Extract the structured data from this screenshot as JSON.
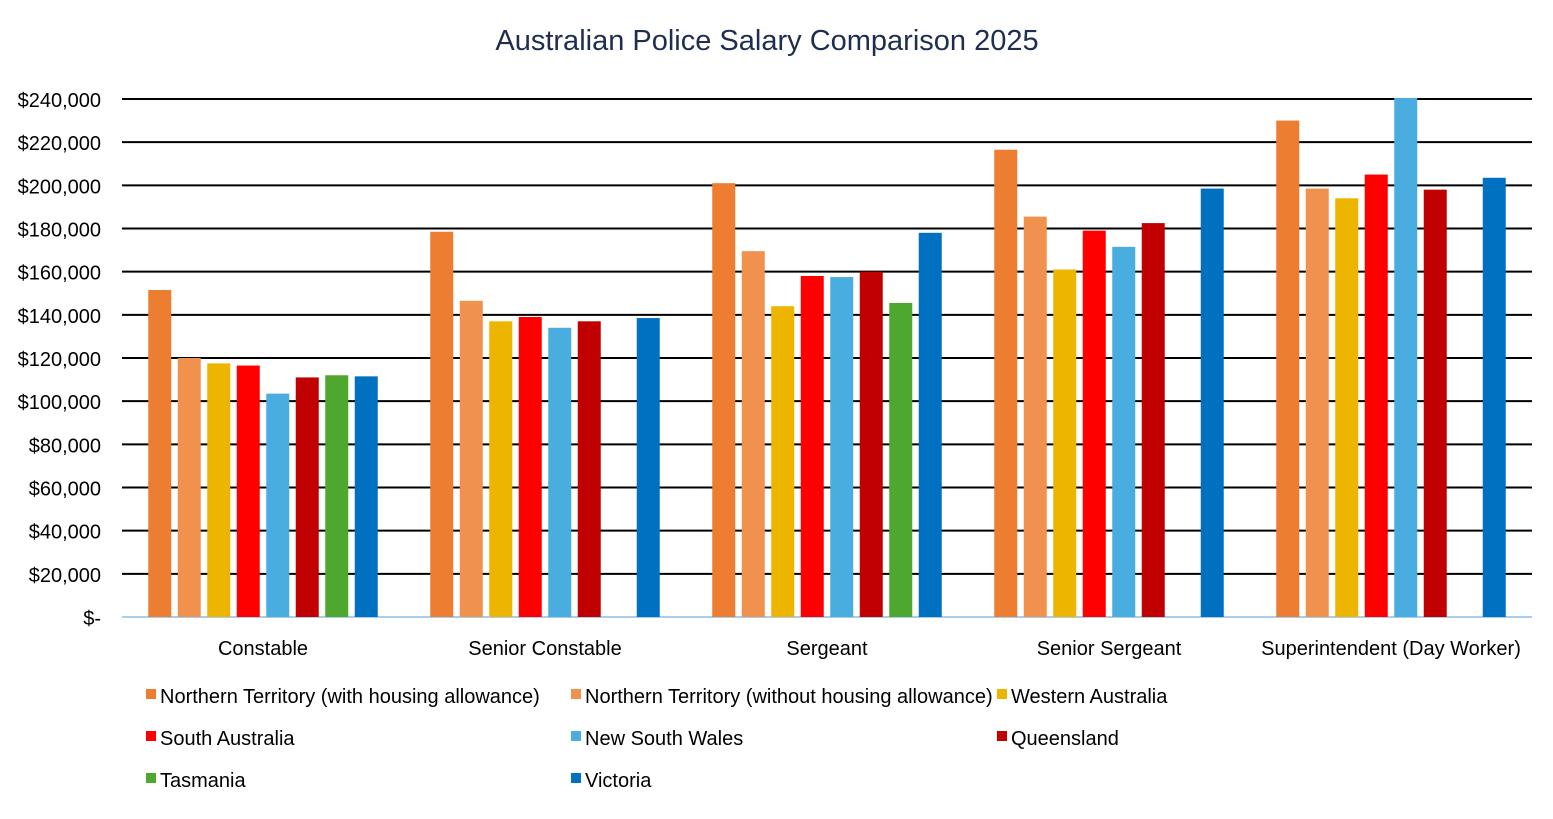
{
  "chart_data": {
    "type": "bar",
    "title": "Australian Police Salary Comparison 2025",
    "xlabel": "",
    "ylabel": "",
    "ylim": [
      0,
      240000
    ],
    "y_ticks": [
      0,
      20000,
      40000,
      60000,
      80000,
      100000,
      120000,
      140000,
      160000,
      180000,
      200000,
      220000,
      240000
    ],
    "y_tick_labels": [
      "$-",
      "$20,000",
      "$40,000",
      "$60,000",
      "$80,000",
      "$100,000",
      "$120,000",
      "$140,000",
      "$160,000",
      "$180,000",
      "$200,000",
      "$220,000",
      "$240,000"
    ],
    "grid": true,
    "legend_position": "bottom",
    "categories": [
      "Constable",
      "Senior Constable",
      "Sergeant",
      "Senior Sergeant",
      "Superintendent (Day Worker)"
    ],
    "series": [
      {
        "name": "Northern Territory (with housing allowance)",
        "color": "#ED7D31",
        "values": [
          151500,
          178500,
          201000,
          216500,
          230000
        ]
      },
      {
        "name": "Northern Territory (without housing allowance)",
        "color": "#F0914E",
        "values": [
          120000,
          146500,
          169500,
          185500,
          198500
        ]
      },
      {
        "name": "Western Australia",
        "color": "#EEB500",
        "values": [
          117500,
          137000,
          144000,
          161000,
          194000
        ]
      },
      {
        "name": "South Australia",
        "color": "#FF0000",
        "values": [
          116500,
          139000,
          158000,
          179000,
          205000
        ]
      },
      {
        "name": "New South Wales",
        "color": "#4AADE0",
        "values": [
          103500,
          134000,
          157500,
          171500,
          240500
        ]
      },
      {
        "name": "Queensland",
        "color": "#C00000",
        "values": [
          111000,
          137000,
          160000,
          182500,
          198000
        ]
      },
      {
        "name": "Tasmania",
        "color": "#4EA72E",
        "values": [
          112000,
          null,
          145500,
          null,
          null
        ]
      },
      {
        "name": "Victoria",
        "color": "#0070C0",
        "values": [
          111500,
          138500,
          178000,
          198500,
          203500
        ]
      }
    ]
  }
}
